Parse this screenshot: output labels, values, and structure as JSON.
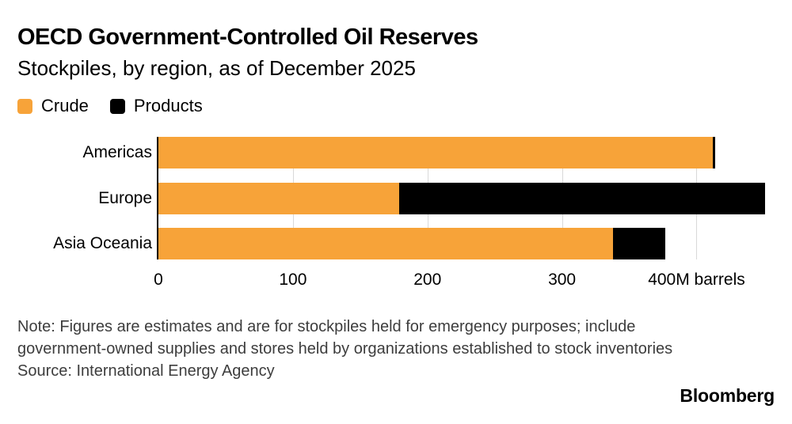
{
  "chart_data": {
    "type": "bar",
    "orientation": "horizontal",
    "stacked": true,
    "title": "OECD Government-Controlled Oil Reserves",
    "subtitle": "Stockpiles, by region, as of December 2025",
    "categories": [
      "Americas",
      "Europe",
      "Asia Oceania"
    ],
    "series": [
      {
        "name": "Crude",
        "color": "#F7A339",
        "values": [
          412,
          179,
          338
        ]
      },
      {
        "name": "Products",
        "color": "#000000",
        "values": [
          2,
          272,
          39
        ]
      }
    ],
    "x_ticks": [
      0,
      100,
      200,
      300,
      400
    ],
    "x_tick_labels": [
      "0",
      "100",
      "200",
      "300",
      "400M barrels"
    ],
    "xlim": [
      0,
      458
    ],
    "unit": "M barrels",
    "grid": "vertical",
    "legend_position": "top",
    "colors": {
      "crude": "#F7A339",
      "products": "#000000",
      "gridline": "#d9d9d9",
      "axis": "#000000"
    }
  },
  "footer": {
    "note_lines": [
      "Note: Figures are estimates and are for stockpiles held for emergency purposes; include",
      "government-owned supplies and stores held by organizations established to stock inventories"
    ],
    "source": "Source: International Energy Agency",
    "brand": "Bloomberg"
  }
}
